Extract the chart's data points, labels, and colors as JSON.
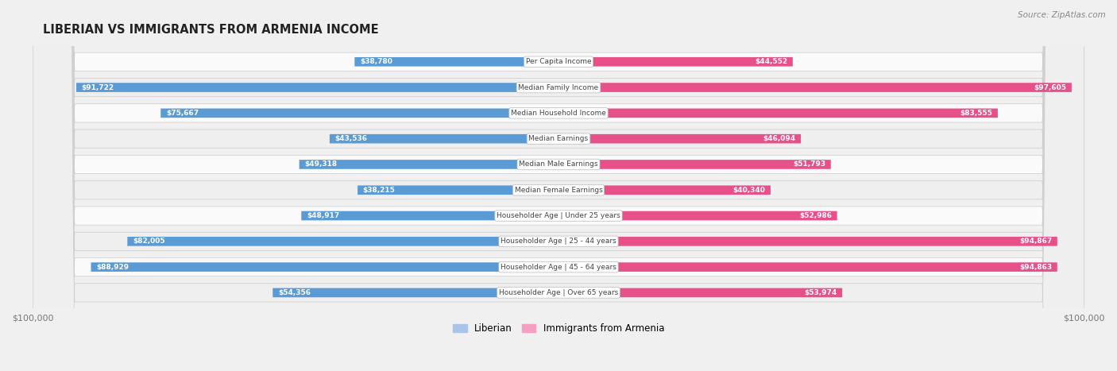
{
  "title": "LIBERIAN VS IMMIGRANTS FROM ARMENIA INCOME",
  "source": "Source: ZipAtlas.com",
  "categories": [
    "Per Capita Income",
    "Median Family Income",
    "Median Household Income",
    "Median Earnings",
    "Median Male Earnings",
    "Median Female Earnings",
    "Householder Age | Under 25 years",
    "Householder Age | 25 - 44 years",
    "Householder Age | 45 - 64 years",
    "Householder Age | Over 65 years"
  ],
  "liberian_values": [
    38780,
    91722,
    75667,
    43536,
    49318,
    38215,
    48917,
    82005,
    88929,
    54356
  ],
  "armenia_values": [
    44552,
    97605,
    83555,
    46094,
    51793,
    40340,
    52986,
    94867,
    94863,
    53974
  ],
  "max_value": 100000,
  "liberian_color_light": "#aac4e8",
  "liberian_color_dark": "#5b9bd5",
  "armenia_color_light": "#f5a0c0",
  "armenia_color_dark": "#e8508a",
  "bg_color": "#f0f0f0",
  "row_bg_even": "#fafafa",
  "row_bg_odd": "#efefef",
  "center_label_color": "#444444",
  "title_color": "#222222",
  "value_color_inside": "#ffffff",
  "value_color_outside": "#555555",
  "legend_liberian": "Liberian",
  "legend_armenia": "Immigrants from Armenia",
  "inside_threshold_ratio": 0.3
}
